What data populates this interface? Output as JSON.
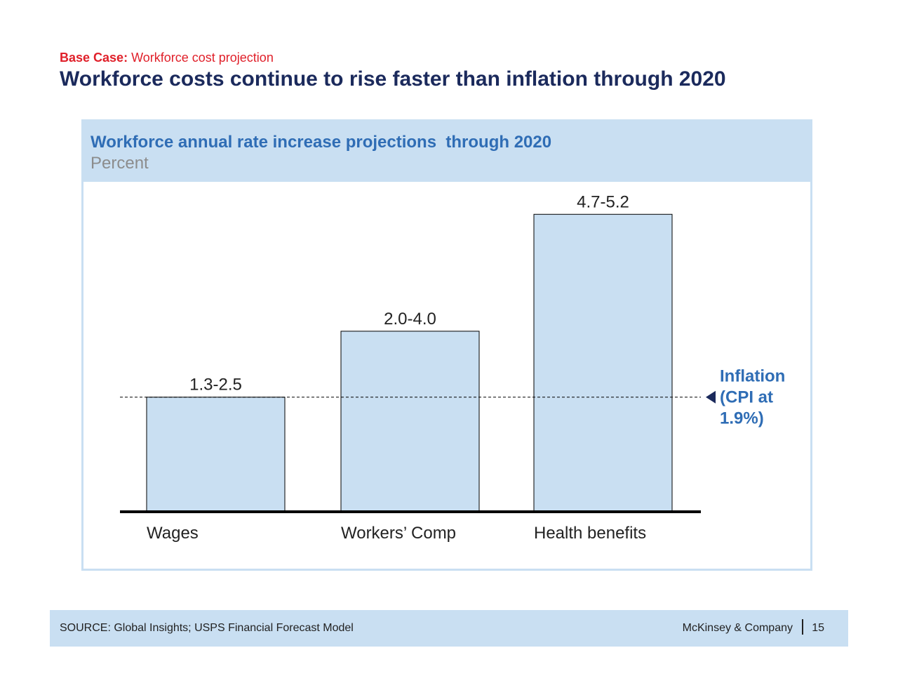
{
  "header": {
    "kicker_bold": "Base Case:",
    "kicker_text": "Workforce cost projection",
    "title": "Workforce costs continue to rise faster than inflation through 2020"
  },
  "chart_data": {
    "type": "bar",
    "title": "Workforce annual rate increase projections  through 2020",
    "unit": "Percent",
    "categories": [
      "Wages",
      "Workers’ Comp",
      "Health benefits"
    ],
    "ranges": [
      [
        1.3,
        2.5
      ],
      [
        2.0,
        4.0
      ],
      [
        4.7,
        5.2
      ]
    ],
    "values": [
      1.9,
      3.0,
      4.95
    ],
    "value_labels": [
      "1.3-2.5",
      "2.0-4.0",
      "4.7-5.2"
    ],
    "reference_line": {
      "value": 1.9,
      "label_lines": [
        "Inflation",
        "(CPI at",
        "1.9%)"
      ]
    },
    "ylim": [
      0,
      5.0
    ],
    "grid": false,
    "bar_color": "#c9dff2",
    "accent_color": "#2f6db5"
  },
  "footer": {
    "source": "SOURCE: Global Insights; USPS Financial Forecast Model",
    "company": "McKinsey & Company",
    "page": "15"
  }
}
